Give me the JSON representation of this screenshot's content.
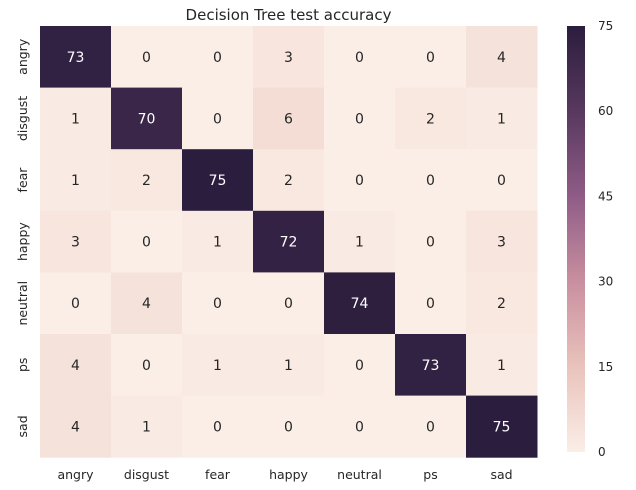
{
  "chart_data": {
    "type": "heatmap",
    "title": "Decision Tree test accuracy",
    "xlabel": "",
    "ylabel": "",
    "x_categories": [
      "angry",
      "disgust",
      "fear",
      "happy",
      "neutral",
      "ps",
      "sad"
    ],
    "y_categories": [
      "angry",
      "disgust",
      "fear",
      "happy",
      "neutral",
      "ps",
      "sad"
    ],
    "values": [
      [
        73,
        0,
        0,
        3,
        0,
        0,
        4
      ],
      [
        1,
        70,
        0,
        6,
        0,
        2,
        1
      ],
      [
        1,
        2,
        75,
        2,
        0,
        0,
        0
      ],
      [
        3,
        0,
        1,
        72,
        1,
        0,
        3
      ],
      [
        0,
        4,
        0,
        0,
        74,
        0,
        2
      ],
      [
        4,
        0,
        1,
        1,
        0,
        73,
        1
      ],
      [
        4,
        1,
        0,
        0,
        0,
        0,
        75
      ]
    ],
    "vmin": 0,
    "vmax": 75,
    "colorbar_ticks": [
      0,
      15,
      30,
      45,
      60,
      75
    ],
    "colormap": [
      "#faeee6",
      "#e9c3bc",
      "#c98f9f",
      "#8f5c87",
      "#58385f",
      "#2b1d3d"
    ],
    "annotation_colors": {
      "dark_text": "#262626",
      "light_text": "#ffffff"
    }
  }
}
